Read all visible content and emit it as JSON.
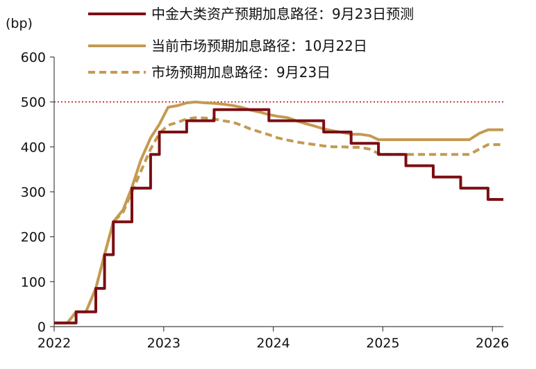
{
  "chart_data": {
    "type": "line",
    "ylabel": "(bp)",
    "yticks": [
      "600",
      "500",
      "400",
      "300",
      "200",
      "100",
      "0"
    ],
    "xticks": [
      "2022",
      "2023",
      "2024",
      "2025",
      "2026"
    ],
    "xlim": [
      2022,
      2026.1
    ],
    "ylim": [
      0,
      600
    ],
    "reference_line": {
      "y": 500,
      "color": "#c00000",
      "style": "dotted"
    },
    "legend_position": "top",
    "series": [
      {
        "name": "中金大类资产预期加息路径：9月23日预测",
        "color": "#7b0f14",
        "style": "solid",
        "step": true,
        "points": [
          [
            2022.0,
            8
          ],
          [
            2022.12,
            8
          ],
          [
            2022.2,
            33
          ],
          [
            2022.29,
            33
          ],
          [
            2022.38,
            85
          ],
          [
            2022.46,
            160
          ],
          [
            2022.54,
            233
          ],
          [
            2022.63,
            233
          ],
          [
            2022.71,
            308
          ],
          [
            2022.79,
            308
          ],
          [
            2022.88,
            383
          ],
          [
            2022.96,
            433
          ],
          [
            2023.04,
            433
          ],
          [
            2023.13,
            433
          ],
          [
            2023.21,
            458
          ],
          [
            2023.29,
            458
          ],
          [
            2023.38,
            458
          ],
          [
            2023.46,
            483
          ],
          [
            2023.54,
            483
          ],
          [
            2023.63,
            483
          ],
          [
            2023.71,
            483
          ],
          [
            2023.79,
            483
          ],
          [
            2023.88,
            483
          ],
          [
            2023.96,
            458
          ],
          [
            2024.04,
            458
          ],
          [
            2024.13,
            458
          ],
          [
            2024.21,
            458
          ],
          [
            2024.29,
            458
          ],
          [
            2024.38,
            458
          ],
          [
            2024.46,
            433
          ],
          [
            2024.54,
            433
          ],
          [
            2024.63,
            433
          ],
          [
            2024.71,
            408
          ],
          [
            2024.79,
            408
          ],
          [
            2024.88,
            408
          ],
          [
            2024.96,
            383
          ],
          [
            2025.04,
            383
          ],
          [
            2025.13,
            383
          ],
          [
            2025.21,
            358
          ],
          [
            2025.29,
            358
          ],
          [
            2025.38,
            358
          ],
          [
            2025.46,
            333
          ],
          [
            2025.54,
            333
          ],
          [
            2025.63,
            333
          ],
          [
            2025.71,
            308
          ],
          [
            2025.79,
            308
          ],
          [
            2025.88,
            308
          ],
          [
            2025.96,
            283
          ],
          [
            2026.04,
            283
          ],
          [
            2026.1,
            283
          ]
        ]
      },
      {
        "name": "当前市场预期加息路径：10月22日",
        "color": "#c49a52",
        "style": "solid",
        "step": false,
        "points": [
          [
            2022.0,
            8
          ],
          [
            2022.12,
            8
          ],
          [
            2022.2,
            33
          ],
          [
            2022.29,
            33
          ],
          [
            2022.38,
            85
          ],
          [
            2022.46,
            160
          ],
          [
            2022.54,
            233
          ],
          [
            2022.63,
            260
          ],
          [
            2022.71,
            310
          ],
          [
            2022.79,
            370
          ],
          [
            2022.88,
            420
          ],
          [
            2022.96,
            450
          ],
          [
            2023.04,
            488
          ],
          [
            2023.13,
            492
          ],
          [
            2023.21,
            498
          ],
          [
            2023.29,
            500
          ],
          [
            2023.38,
            498
          ],
          [
            2023.46,
            497
          ],
          [
            2023.54,
            495
          ],
          [
            2023.63,
            492
          ],
          [
            2023.71,
            488
          ],
          [
            2023.79,
            482
          ],
          [
            2023.88,
            477
          ],
          [
            2023.96,
            472
          ],
          [
            2024.04,
            468
          ],
          [
            2024.13,
            465
          ],
          [
            2024.21,
            458
          ],
          [
            2024.29,
            452
          ],
          [
            2024.38,
            446
          ],
          [
            2024.46,
            440
          ],
          [
            2024.54,
            436
          ],
          [
            2024.63,
            432
          ],
          [
            2024.71,
            428
          ],
          [
            2024.79,
            428
          ],
          [
            2024.88,
            425
          ],
          [
            2024.96,
            416
          ],
          [
            2025.04,
            416
          ],
          [
            2025.13,
            416
          ],
          [
            2025.21,
            416
          ],
          [
            2025.29,
            416
          ],
          [
            2025.38,
            416
          ],
          [
            2025.46,
            416
          ],
          [
            2025.54,
            416
          ],
          [
            2025.63,
            416
          ],
          [
            2025.71,
            416
          ],
          [
            2025.79,
            416
          ],
          [
            2025.88,
            430
          ],
          [
            2025.96,
            438
          ],
          [
            2026.04,
            438
          ],
          [
            2026.1,
            438
          ]
        ]
      },
      {
        "name": "市场预期加息路径：9月23日",
        "color": "#c49a52",
        "style": "dashed",
        "step": false,
        "points": [
          [
            2022.0,
            8
          ],
          [
            2022.12,
            8
          ],
          [
            2022.2,
            33
          ],
          [
            2022.29,
            33
          ],
          [
            2022.38,
            85
          ],
          [
            2022.46,
            160
          ],
          [
            2022.54,
            233
          ],
          [
            2022.63,
            255
          ],
          [
            2022.71,
            300
          ],
          [
            2022.79,
            345
          ],
          [
            2022.88,
            395
          ],
          [
            2022.96,
            430
          ],
          [
            2023.04,
            448
          ],
          [
            2023.13,
            455
          ],
          [
            2023.21,
            462
          ],
          [
            2023.29,
            465
          ],
          [
            2023.38,
            464
          ],
          [
            2023.46,
            462
          ],
          [
            2023.54,
            458
          ],
          [
            2023.63,
            455
          ],
          [
            2023.71,
            448
          ],
          [
            2023.79,
            440
          ],
          [
            2023.88,
            433
          ],
          [
            2023.96,
            427
          ],
          [
            2024.04,
            420
          ],
          [
            2024.13,
            415
          ],
          [
            2024.21,
            411
          ],
          [
            2024.29,
            408
          ],
          [
            2024.38,
            405
          ],
          [
            2024.46,
            402
          ],
          [
            2024.54,
            400
          ],
          [
            2024.63,
            400
          ],
          [
            2024.71,
            399
          ],
          [
            2024.79,
            399
          ],
          [
            2024.88,
            395
          ],
          [
            2024.96,
            385
          ],
          [
            2025.04,
            383
          ],
          [
            2025.13,
            383
          ],
          [
            2025.21,
            383
          ],
          [
            2025.29,
            383
          ],
          [
            2025.38,
            383
          ],
          [
            2025.46,
            383
          ],
          [
            2025.54,
            383
          ],
          [
            2025.63,
            383
          ],
          [
            2025.71,
            383
          ],
          [
            2025.79,
            383
          ],
          [
            2025.88,
            395
          ],
          [
            2025.96,
            405
          ],
          [
            2026.04,
            405
          ],
          [
            2026.1,
            405
          ]
        ]
      }
    ]
  }
}
